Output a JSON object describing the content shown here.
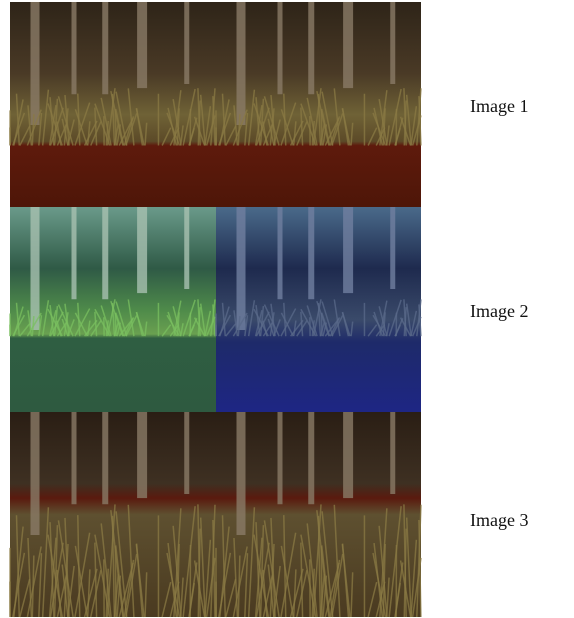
{
  "rows": [
    {
      "label": "Image 1"
    },
    {
      "label": "Image 2"
    },
    {
      "label": "Image 3"
    }
  ]
}
